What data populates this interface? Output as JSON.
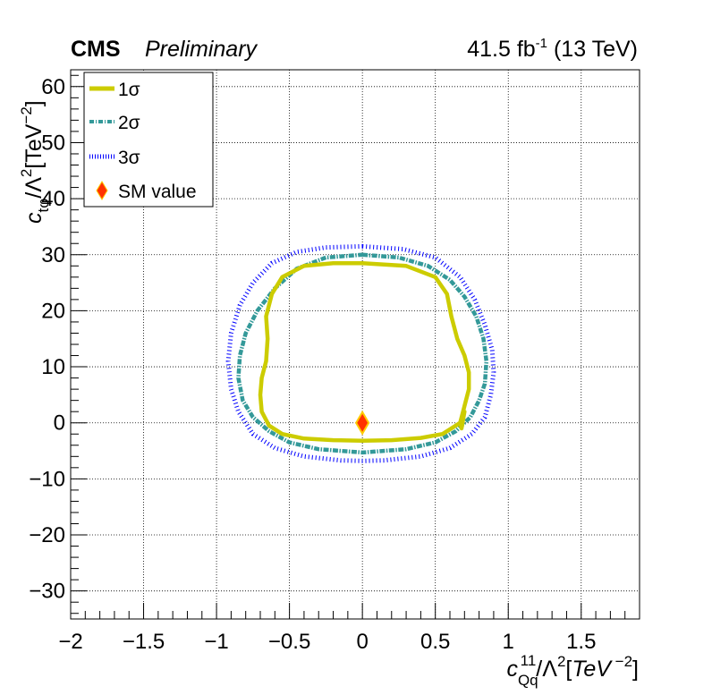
{
  "header": {
    "experiment": "CMS",
    "status": "Preliminary",
    "luminosity": "41.5 fb",
    "lumi_exp": "-1",
    "energy": " (13 TeV)"
  },
  "chart_data": {
    "type": "line",
    "title": "",
    "xlabel": "c_Qq^11/Λ^2[TeV^-2]",
    "ylabel": "c_tφ/Λ^2[TeV^-2]",
    "xlim": [
      -2,
      1.9
    ],
    "ylim": [
      -35,
      63
    ],
    "xticks": [
      -2,
      -1.5,
      -1,
      -0.5,
      0,
      0.5,
      1,
      1.5
    ],
    "yticks": [
      -30,
      -20,
      -10,
      0,
      10,
      20,
      30,
      40,
      50,
      60
    ],
    "xtick_labels": [
      "−2",
      "−1.5",
      "−1",
      "−0.5",
      "0",
      "0.5",
      "1",
      "1.5"
    ],
    "ytick_labels": [
      "−30",
      "−20",
      "−10",
      "0",
      "10",
      "20",
      "30",
      "40",
      "50",
      "60"
    ],
    "grid": true,
    "legend_position": "top-left",
    "series": [
      {
        "name": "1σ",
        "style": "solid",
        "color": "#cccc00",
        "x": [
          0.0,
          0.3,
          0.5,
          0.58,
          0.61,
          0.65,
          0.7,
          0.73,
          0.73,
          0.7,
          0.67,
          0.68,
          0.7,
          0.67,
          0.55,
          0.4,
          0.2,
          0.0,
          -0.2,
          -0.4,
          -0.55,
          -0.64,
          -0.69,
          -0.7,
          -0.69,
          -0.66,
          -0.65,
          -0.66,
          -0.62,
          -0.55,
          -0.4,
          -0.2,
          0.0
        ],
        "y": [
          28.5,
          28.0,
          26.0,
          23.0,
          19.0,
          15.0,
          12.0,
          9.0,
          6.0,
          3.0,
          0.0,
          -1.0,
          2.0,
          0.0,
          -2.0,
          -2.7,
          -3.1,
          -3.2,
          -3.1,
          -2.8,
          -2.0,
          -0.5,
          2.0,
          5.0,
          8.0,
          11.0,
          15.0,
          19.0,
          23.0,
          26.0,
          28.0,
          28.5,
          28.5
        ]
      },
      {
        "name": "2σ",
        "style": "dashed",
        "color": "#339999",
        "x": [
          0.0,
          0.25,
          0.45,
          0.6,
          0.7,
          0.78,
          0.83,
          0.85,
          0.84,
          0.8,
          0.74,
          0.64,
          0.5,
          0.3,
          0.0,
          -0.3,
          -0.5,
          -0.64,
          -0.75,
          -0.82,
          -0.85,
          -0.84,
          -0.8,
          -0.72,
          -0.6,
          -0.45,
          -0.25,
          0.0
        ],
        "y": [
          30.0,
          29.5,
          28.0,
          25.5,
          22.5,
          19.0,
          15.0,
          11.0,
          7.0,
          4.0,
          1.0,
          -1.5,
          -3.5,
          -4.7,
          -5.3,
          -4.7,
          -3.5,
          -1.5,
          1.0,
          4.0,
          8.0,
          12.0,
          16.0,
          20.0,
          24.0,
          27.5,
          29.5,
          30.0
        ]
      },
      {
        "name": "3σ",
        "style": "dotted",
        "color": "#0000ff",
        "x": [
          0.0,
          0.28,
          0.5,
          0.67,
          0.77,
          0.84,
          0.89,
          0.9,
          0.88,
          0.84,
          0.75,
          0.6,
          0.4,
          0.15,
          0.0,
          -0.15,
          -0.4,
          -0.6,
          -0.75,
          -0.85,
          -0.9,
          -0.92,
          -0.9,
          -0.84,
          -0.75,
          -0.62,
          -0.45,
          -0.25,
          0.0
        ],
        "y": [
          31.5,
          31.0,
          29.5,
          26.0,
          22.0,
          17.5,
          13.0,
          9.0,
          5.0,
          1.0,
          -2.0,
          -4.5,
          -6.0,
          -6.7,
          -6.8,
          -6.7,
          -6.0,
          -4.5,
          -2.0,
          2.0,
          6.0,
          11.0,
          16.0,
          21.0,
          25.0,
          28.5,
          30.5,
          31.3,
          31.5
        ]
      }
    ],
    "points": [
      {
        "name": "SM value",
        "x": 0,
        "y": 0,
        "color": "#ff3300",
        "edge": "#ffcc00",
        "marker": "diamond"
      }
    ]
  }
}
